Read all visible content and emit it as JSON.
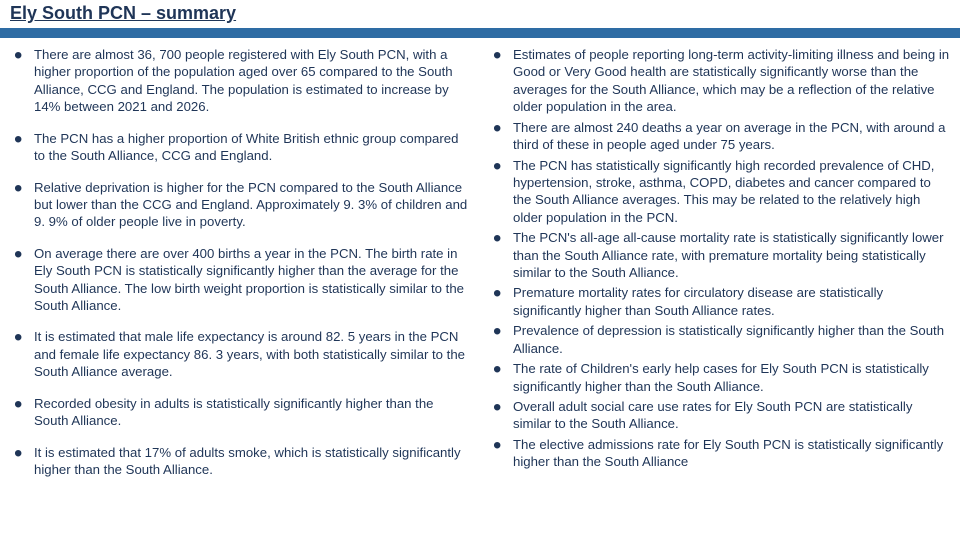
{
  "header": {
    "title": "Ely South PCN – summary",
    "bar_color": "#2e6ca4",
    "title_color": "#1f3557"
  },
  "text_color": "#1f3557",
  "background_color": "#ffffff",
  "left_bullets": [
    "There are almost 36, 700 people registered with Ely South PCN, with a higher proportion of the population aged over 65 compared to the South Alliance, CCG and England.  The population is estimated to increase by 14% between 2021 and 2026.",
    "The PCN has a higher proportion of White British ethnic group compared to the South Alliance, CCG and England.",
    "Relative deprivation is higher for the PCN compared to the South Alliance but lower than the CCG and England.  Approximately 9. 3% of children and 9. 9% of older people live in poverty.",
    "On average there are over 400 births a year in the PCN. The birth rate in Ely South PCN is statistically significantly higher than the average for the South Alliance.  The low birth weight proportion is statistically similar to the South Alliance.",
    "It is estimated that male life expectancy is around 82. 5 years in the PCN and female life expectancy 86. 3 years, with both statistically similar to the South Alliance average.",
    "Recorded obesity in adults is statistically significantly higher than the South Alliance.",
    "It is estimated that 17% of adults smoke, which is statistically significantly higher than the South Alliance."
  ],
  "right_bullets": [
    "Estimates of people reporting long-term activity-limiting illness and being in Good or Very Good health are statistically significantly worse than the averages for the South Alliance, which may be a reflection of the relative older population in the area.",
    "There are almost 240 deaths a year on average in the PCN, with around a third of these in people aged under 75 years.",
    "The PCN has statistically significantly high recorded prevalence of CHD, hypertension, stroke, asthma, COPD, diabetes and cancer compared to the South Alliance averages.  This may be related to the relatively high older population in the PCN.",
    "The PCN's all-age all-cause mortality rate is statistically significantly lower than the South Alliance rate, with premature mortality being statistically similar to the South Alliance.",
    "Premature mortality rates for circulatory disease are statistically significantly higher than South Alliance rates.",
    "Prevalence of depression is statistically significantly higher than the South Alliance.",
    "The rate of Children's early help cases for Ely South PCN is statistically significantly higher than the South Alliance.",
    "Overall adult social care use rates for Ely South PCN are statistically similar to the South Alliance.",
    "The elective admissions rate for Ely South PCN is statistically significantly higher than the South Alliance"
  ]
}
